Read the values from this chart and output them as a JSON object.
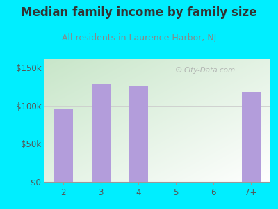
{
  "title": "Median family income by family size",
  "subtitle": "All residents in Laurence Harbor, NJ",
  "categories": [
    "2",
    "3",
    "4",
    "5",
    "6",
    "7+"
  ],
  "values": [
    95000,
    128000,
    125000,
    0,
    0,
    118000
  ],
  "bar_color": "#b39ddb",
  "bg_outer": "#00eeff",
  "grad_top_left": "#c8e6c9",
  "grad_bottom_right": "#ffffff",
  "title_color": "#333333",
  "subtitle_color": "#888888",
  "tick_color": "#555555",
  "yticks": [
    0,
    50000,
    100000,
    150000
  ],
  "ytick_labels": [
    "$0",
    "$50k",
    "$100k",
    "$150k"
  ],
  "ylim": [
    0,
    162000
  ],
  "watermark_text": "City-Data.com",
  "watermark_color": "#aaaaaa",
  "title_fontsize": 12,
  "subtitle_fontsize": 9,
  "tick_fontsize": 8.5
}
